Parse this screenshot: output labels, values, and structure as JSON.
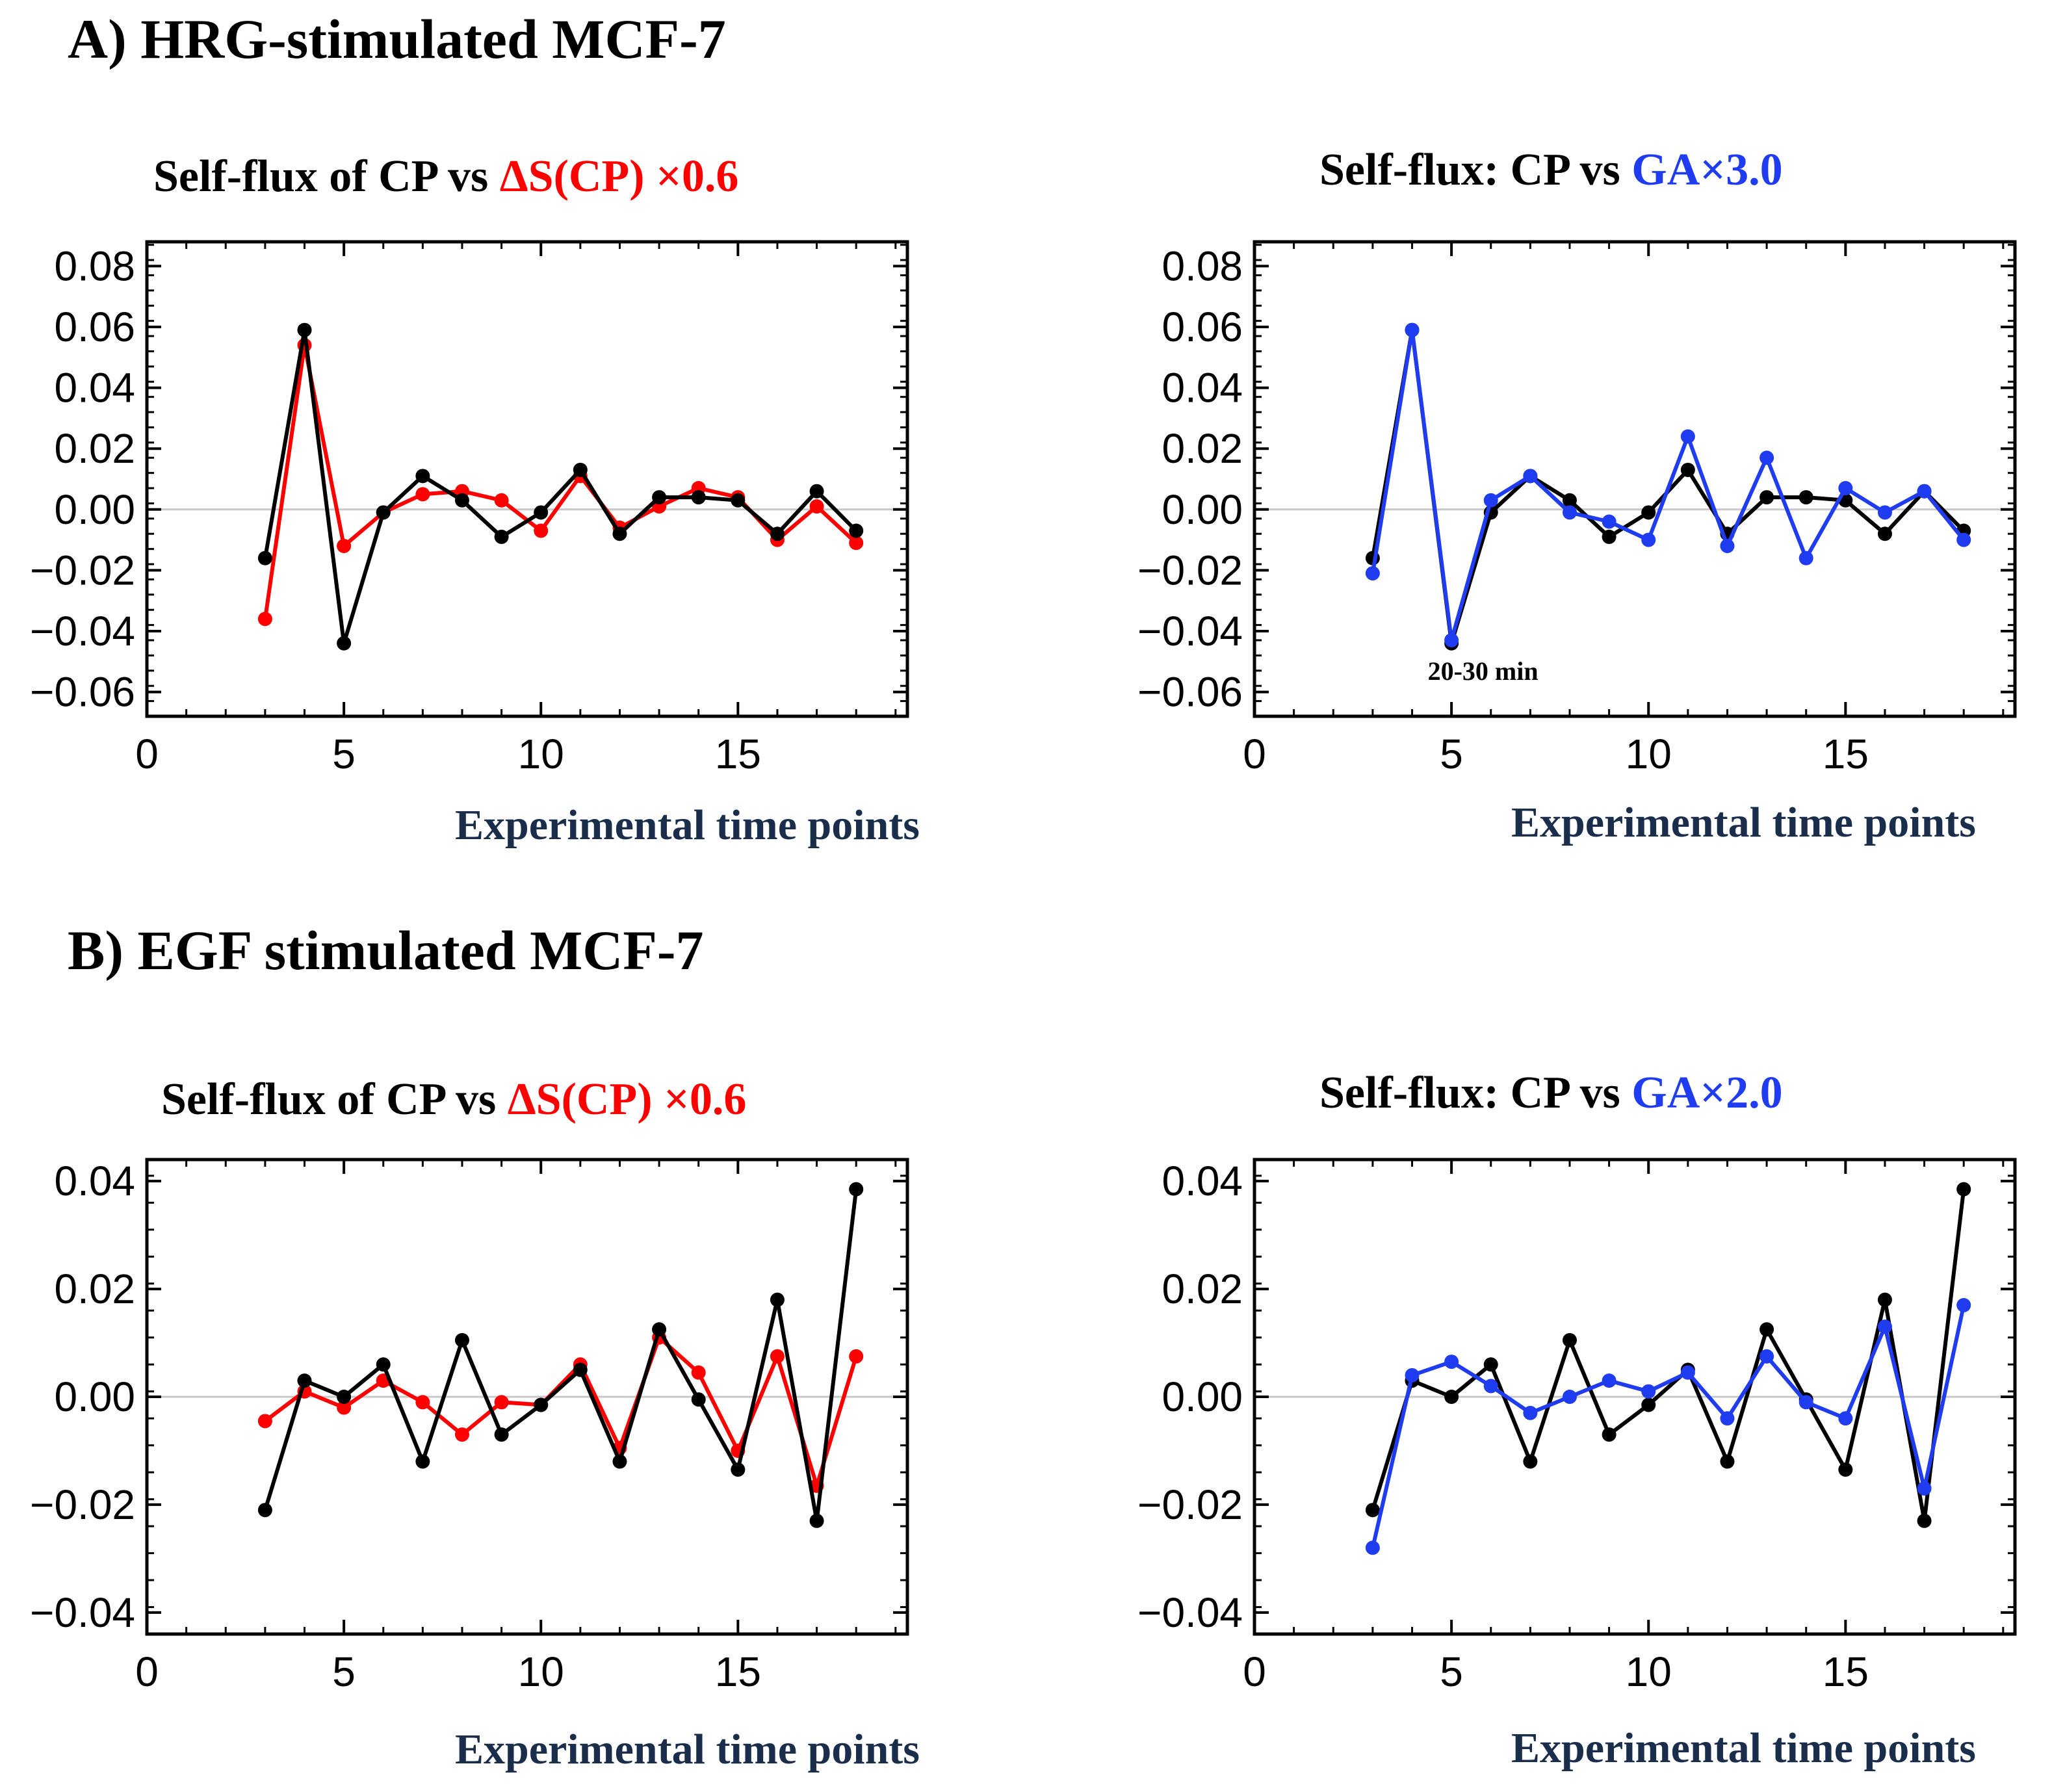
{
  "headings": {
    "a": "A) HRG-stimulated MCF-7",
    "b": "B) EGF stimulated MCF-7"
  },
  "colors": {
    "black": "#000000",
    "red": "#ff0000",
    "blue": "#1f3cf0",
    "zero": "#c8c8c8"
  },
  "chart_data": [
    {
      "type": "line",
      "title_main": "Self-flux of CP  vs ",
      "title_accent": "ΔS(CP) ×0.6",
      "accent_color": "#ff0000",
      "xlabel": "Experimental time points",
      "ylabel": "",
      "xlim": [
        0,
        19.3
      ],
      "ylim": [
        -0.068,
        0.088
      ],
      "xticks": [
        0,
        5,
        10,
        15
      ],
      "yticks": [
        0.08,
        0.06,
        0.04,
        0.02,
        0.0,
        -0.02,
        -0.04,
        -0.06
      ],
      "ytick_labels": [
        "0.08",
        "0.06",
        "0.04",
        "0.02",
        "0.00",
        "−0.02",
        "−0.04",
        "−0.06"
      ],
      "series": [
        {
          "name": "ΔS(CP) ×0.6",
          "color": "#ff0000",
          "x": [
            3,
            4,
            5,
            6,
            7,
            8,
            9,
            10,
            11,
            12,
            13,
            14,
            15,
            16,
            17,
            18
          ],
          "y": [
            -0.036,
            0.054,
            -0.012,
            -0.001,
            0.005,
            0.006,
            0.003,
            -0.007,
            0.011,
            -0.006,
            0.001,
            0.007,
            0.004,
            -0.01,
            0.001,
            -0.011
          ]
        },
        {
          "name": "Self-flux of CP",
          "color": "#000000",
          "x": [
            3,
            4,
            5,
            6,
            7,
            8,
            9,
            10,
            11,
            12,
            13,
            14,
            15,
            16,
            17,
            18
          ],
          "y": [
            -0.016,
            0.059,
            -0.044,
            -0.001,
            0.011,
            0.003,
            -0.009,
            -0.001,
            0.013,
            -0.008,
            0.004,
            0.004,
            0.003,
            -0.008,
            0.006,
            -0.007
          ]
        }
      ],
      "annotations": []
    },
    {
      "type": "line",
      "title_main": "Self-flux: CP vs ",
      "title_accent": "GA×3.0",
      "accent_color": "#1f3cf0",
      "xlabel": "Experimental time points",
      "ylabel": "",
      "xlim": [
        0,
        19.3
      ],
      "ylim": [
        -0.068,
        0.088
      ],
      "xticks": [
        0,
        5,
        10,
        15
      ],
      "yticks": [
        0.08,
        0.06,
        0.04,
        0.02,
        0.0,
        -0.02,
        -0.04,
        -0.06
      ],
      "ytick_labels": [
        "0.08",
        "0.06",
        "0.04",
        "0.02",
        "0.00",
        "−0.02",
        "−0.04",
        "−0.06"
      ],
      "series": [
        {
          "name": "Self-flux of CP",
          "color": "#000000",
          "x": [
            3,
            4,
            5,
            6,
            7,
            8,
            9,
            10,
            11,
            12,
            13,
            14,
            15,
            16,
            17,
            18
          ],
          "y": [
            -0.016,
            0.059,
            -0.044,
            -0.001,
            0.011,
            0.003,
            -0.009,
            -0.001,
            0.013,
            -0.008,
            0.004,
            0.004,
            0.003,
            -0.008,
            0.006,
            -0.007
          ]
        },
        {
          "name": "GA×3.0",
          "color": "#1f3cf0",
          "x": [
            3,
            4,
            5,
            6,
            7,
            8,
            9,
            10,
            11,
            12,
            13,
            14,
            15,
            16,
            17,
            18
          ],
          "y": [
            -0.021,
            0.059,
            -0.043,
            0.003,
            0.011,
            -0.001,
            -0.004,
            -0.01,
            0.024,
            -0.012,
            0.017,
            -0.016,
            0.007,
            -0.001,
            0.006,
            -0.01
          ]
        }
      ],
      "annotations": [
        {
          "text": "20-30 min",
          "x": 5.8,
          "y": -0.056
        }
      ]
    },
    {
      "type": "line",
      "title_main": "Self-flux of CP  vs ",
      "title_accent": "ΔS(CP) ×0.6",
      "accent_color": "#ff0000",
      "xlabel": "Experimental time points",
      "ylabel": "",
      "xlim": [
        0,
        19.3
      ],
      "ylim": [
        -0.044,
        0.044
      ],
      "xticks": [
        0,
        5,
        10,
        15
      ],
      "yticks": [
        0.04,
        0.02,
        0.0,
        -0.02,
        -0.04
      ],
      "ytick_labels": [
        "0.04",
        "0.02",
        "0.00",
        "−0.02",
        "−0.04"
      ],
      "series": [
        {
          "name": "ΔS(CP) ×0.6",
          "color": "#ff0000",
          "x": [
            3,
            4,
            5,
            6,
            7,
            8,
            9,
            10,
            11,
            12,
            13,
            14,
            15,
            16,
            17,
            18
          ],
          "y": [
            -0.0045,
            0.001,
            -0.002,
            0.003,
            -0.001,
            -0.007,
            -0.001,
            -0.0015,
            0.006,
            -0.0095,
            0.011,
            0.0045,
            -0.01,
            0.0075,
            -0.0165,
            0.0075
          ]
        },
        {
          "name": "Self-flux of CP",
          "color": "#000000",
          "x": [
            3,
            4,
            5,
            6,
            7,
            8,
            9,
            10,
            11,
            12,
            13,
            14,
            15,
            16,
            17,
            18
          ],
          "y": [
            -0.021,
            0.003,
            0.0,
            0.006,
            -0.012,
            0.0105,
            -0.007,
            -0.0015,
            0.005,
            -0.012,
            0.0125,
            -0.0005,
            -0.0135,
            0.018,
            -0.023,
            0.0385
          ]
        }
      ],
      "annotations": []
    },
    {
      "type": "line",
      "title_main": "Self-flux: CP vs ",
      "title_accent": "GA×2.0",
      "accent_color": "#1f3cf0",
      "xlabel": "Experimental time points",
      "ylabel": "",
      "xlim": [
        0,
        19.3
      ],
      "ylim": [
        -0.044,
        0.044
      ],
      "xticks": [
        0,
        5,
        10,
        15
      ],
      "yticks": [
        0.04,
        0.02,
        0.0,
        -0.02,
        -0.04
      ],
      "ytick_labels": [
        "0.04",
        "0.02",
        "0.00",
        "−0.02",
        "−0.04"
      ],
      "series": [
        {
          "name": "Self-flux of CP",
          "color": "#000000",
          "x": [
            3,
            4,
            5,
            6,
            7,
            8,
            9,
            10,
            11,
            12,
            13,
            14,
            15,
            16,
            17,
            18
          ],
          "y": [
            -0.021,
            0.003,
            0.0,
            0.006,
            -0.012,
            0.0105,
            -0.007,
            -0.0015,
            0.005,
            -0.012,
            0.0125,
            -0.0005,
            -0.0135,
            0.018,
            -0.023,
            0.0385
          ]
        },
        {
          "name": "GA×2.0",
          "color": "#1f3cf0",
          "x": [
            3,
            4,
            5,
            6,
            7,
            8,
            9,
            10,
            11,
            12,
            13,
            14,
            15,
            16,
            17,
            18
          ],
          "y": [
            -0.028,
            0.004,
            0.0065,
            0.002,
            -0.003,
            0.0,
            0.003,
            0.001,
            0.0045,
            -0.004,
            0.0075,
            -0.001,
            -0.004,
            0.013,
            -0.017,
            0.017
          ]
        }
      ],
      "annotations": []
    }
  ]
}
